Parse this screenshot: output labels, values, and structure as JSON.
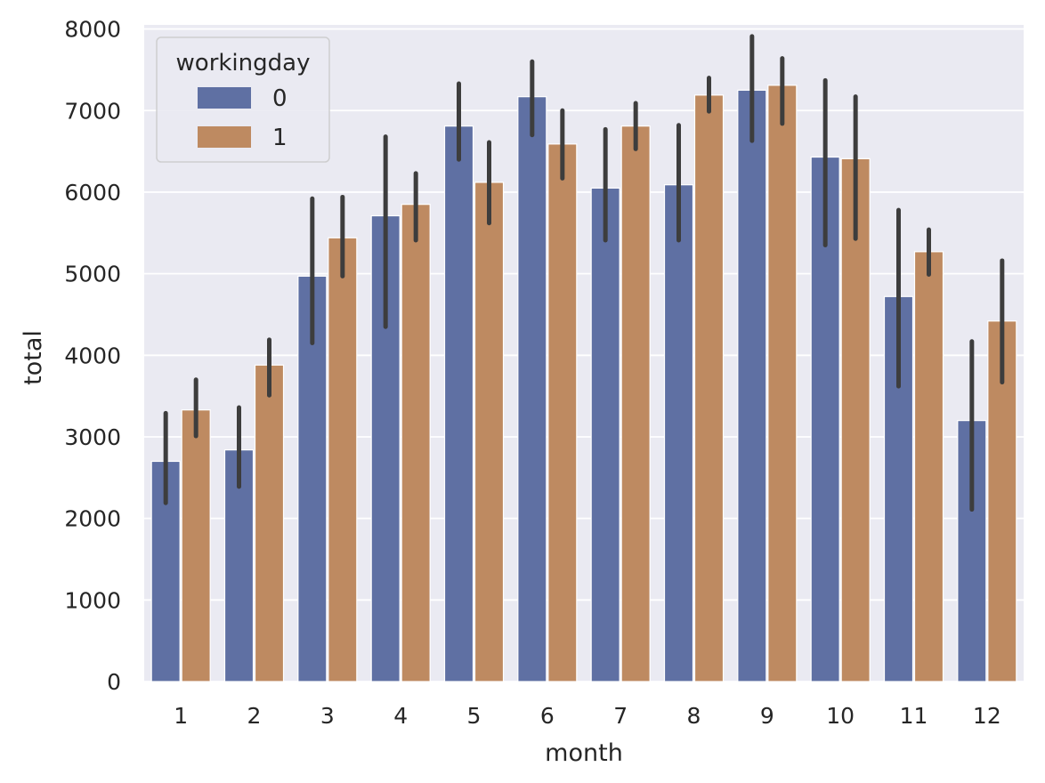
{
  "chart_data": {
    "type": "bar",
    "title": "",
    "xlabel": "month",
    "ylabel": "total",
    "categories": [
      "1",
      "2",
      "3",
      "4",
      "5",
      "6",
      "7",
      "8",
      "9",
      "10",
      "11",
      "12"
    ],
    "ylim": [
      0,
      8050
    ],
    "yticks": [
      0,
      1000,
      2000,
      3000,
      4000,
      5000,
      6000,
      7000,
      8000
    ],
    "grid": true,
    "legend": {
      "title": "workingday",
      "position": "top-left"
    },
    "series": [
      {
        "name": "0",
        "color": "#5f70a3",
        "values": [
          2700,
          2840,
          4970,
          5710,
          6810,
          7170,
          6050,
          6090,
          7250,
          6430,
          4720,
          3200
        ],
        "ci_low": [
          2190,
          2390,
          4150,
          4350,
          6400,
          6700,
          5410,
          5410,
          6630,
          5350,
          3620,
          2110
        ],
        "ci_high": [
          3290,
          3360,
          5920,
          6680,
          7330,
          7600,
          6770,
          6820,
          7910,
          7370,
          5780,
          4170
        ]
      },
      {
        "name": "1",
        "color": "#be8a61",
        "values": [
          3330,
          3880,
          5440,
          5850,
          6120,
          6590,
          6810,
          7190,
          7310,
          6410,
          5270,
          4420
        ],
        "ci_low": [
          3010,
          3510,
          4970,
          5410,
          5620,
          6170,
          6530,
          6990,
          6840,
          5430,
          4990,
          3670
        ],
        "ci_high": [
          3700,
          4190,
          5940,
          6230,
          6610,
          7000,
          7090,
          7400,
          7640,
          7170,
          5540,
          5160
        ]
      }
    ]
  }
}
